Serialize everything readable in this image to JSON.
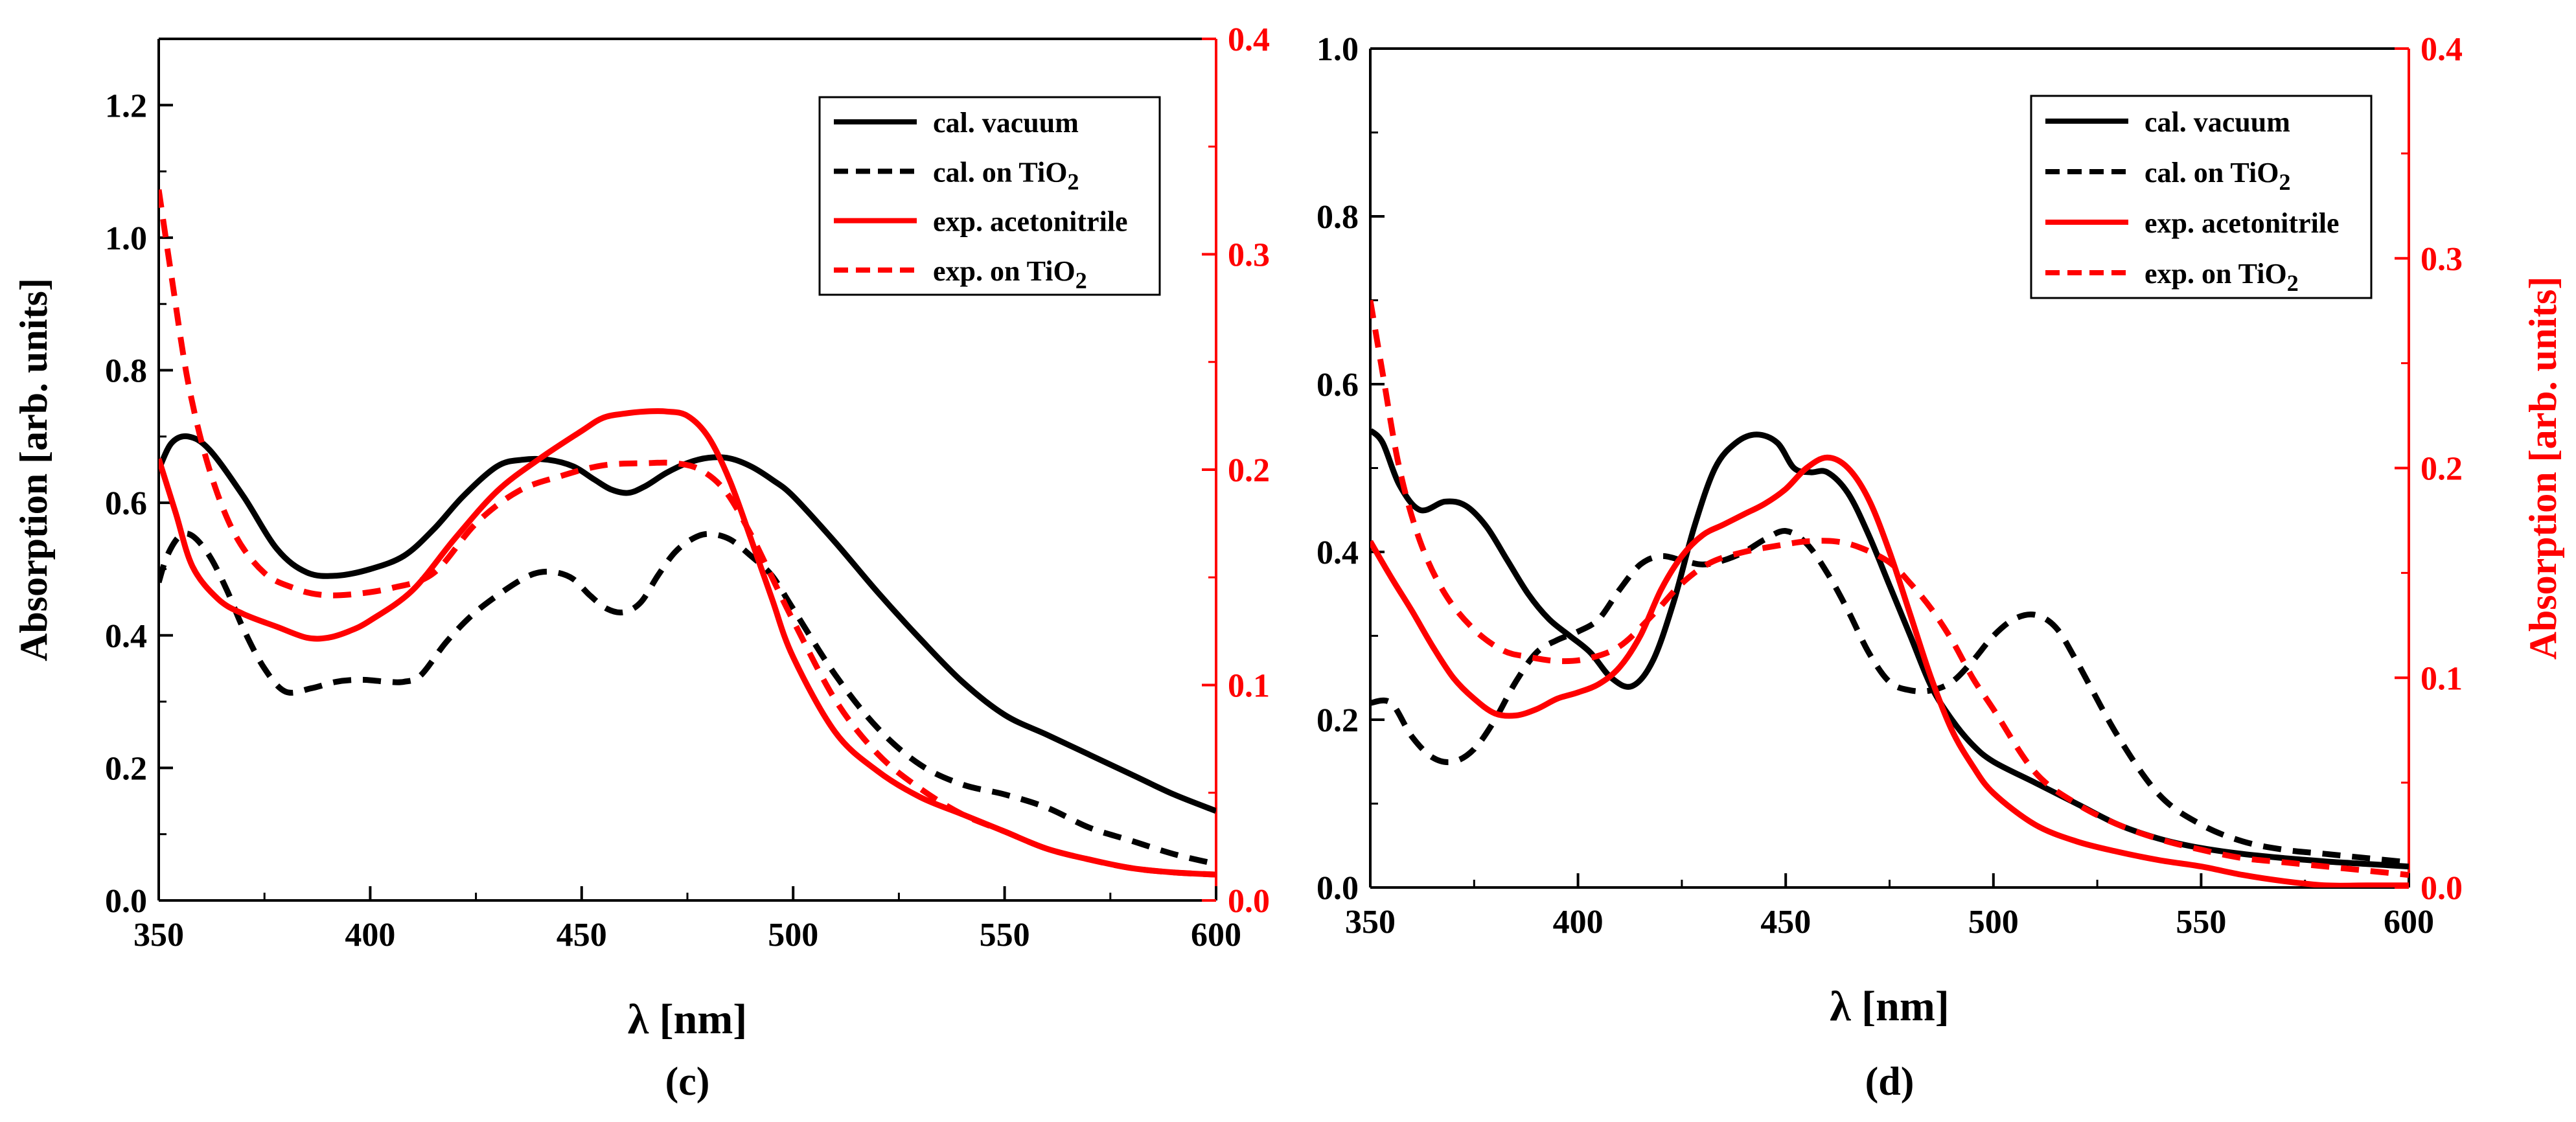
{
  "chart_data": [
    {
      "type": "line",
      "panel_label": "(c)",
      "xlabel": "λ [nm]",
      "ylabel": "Absorption [arb. units]",
      "ylabel_right": "",
      "xlim": [
        350,
        600
      ],
      "ylim": [
        0,
        1.3
      ],
      "ylim_right": [
        0,
        0.4
      ],
      "xticks": [
        350,
        400,
        450,
        500,
        550,
        600
      ],
      "yticks": [
        0.0,
        0.2,
        0.4,
        0.6,
        0.8,
        1.0,
        1.2
      ],
      "yticks_right": [
        0.0,
        0.1,
        0.2,
        0.3,
        0.4
      ],
      "ytick_labels": [
        "0.0",
        "0.2",
        "0.4",
        "0.6",
        "0.8",
        "1.0",
        "1.2"
      ],
      "ytick_right_labels": [
        "0.0",
        "0.1",
        "0.2",
        "0.3",
        "0.4"
      ],
      "legend": {
        "placement": "top-right"
      },
      "series": [
        {
          "name": "cal. vacuum",
          "legend_main": "cal. vacuum",
          "legend_sub": "",
          "color": "#000000",
          "dash": "solid",
          "axis": "left",
          "x": [
            350,
            353,
            357,
            362,
            370,
            378,
            385,
            392,
            400,
            408,
            415,
            422,
            430,
            436,
            442,
            448,
            453,
            457,
            461,
            465,
            470,
            475,
            480,
            485,
            490,
            495,
            500,
            510,
            520,
            530,
            540,
            550,
            560,
            570,
            580,
            590,
            600
          ],
          "y": [
            0.65,
            0.69,
            0.7,
            0.68,
            0.61,
            0.53,
            0.495,
            0.49,
            0.5,
            0.52,
            0.56,
            0.61,
            0.655,
            0.665,
            0.665,
            0.655,
            0.635,
            0.62,
            0.615,
            0.625,
            0.645,
            0.66,
            0.668,
            0.667,
            0.655,
            0.635,
            0.61,
            0.54,
            0.465,
            0.395,
            0.33,
            0.28,
            0.25,
            0.22,
            0.19,
            0.16,
            0.135
          ]
        },
        {
          "name": "cal. on TiO2",
          "legend_main": "cal. on TiO",
          "legend_sub": "2",
          "color": "#000000",
          "dash": "dashed",
          "axis": "left",
          "x": [
            350,
            352,
            355,
            358,
            362,
            366,
            370,
            375,
            380,
            386,
            392,
            398,
            404,
            408,
            412,
            418,
            424,
            430,
            436,
            440,
            444,
            448,
            452,
            456,
            460,
            464,
            468,
            472,
            476,
            480,
            485,
            490,
            495,
            500,
            510,
            520,
            530,
            540,
            550,
            560,
            570,
            580,
            590,
            600
          ],
          "y": [
            0.48,
            0.52,
            0.55,
            0.55,
            0.52,
            0.47,
            0.41,
            0.35,
            0.315,
            0.32,
            0.33,
            0.333,
            0.33,
            0.33,
            0.34,
            0.39,
            0.43,
            0.46,
            0.485,
            0.495,
            0.495,
            0.485,
            0.46,
            0.44,
            0.435,
            0.45,
            0.49,
            0.525,
            0.545,
            0.553,
            0.545,
            0.52,
            0.49,
            0.44,
            0.34,
            0.26,
            0.205,
            0.175,
            0.16,
            0.14,
            0.11,
            0.09,
            0.07,
            0.055
          ]
        },
        {
          "name": "exp. acetonitrile",
          "legend_main": "exp. acetonitrile",
          "legend_sub": "",
          "color": "#ff0000",
          "dash": "solid",
          "axis": "right",
          "x": [
            350,
            354,
            358,
            364,
            370,
            378,
            385,
            390,
            395,
            400,
            410,
            420,
            430,
            440,
            450,
            455,
            460,
            465,
            470,
            475,
            480,
            485,
            490,
            495,
            500,
            510,
            520,
            530,
            540,
            550,
            560,
            570,
            580,
            590,
            600
          ],
          "y": [
            0.205,
            0.18,
            0.155,
            0.14,
            0.133,
            0.127,
            0.122,
            0.122,
            0.125,
            0.13,
            0.144,
            0.168,
            0.19,
            0.205,
            0.218,
            0.224,
            0.226,
            0.227,
            0.227,
            0.225,
            0.215,
            0.195,
            0.168,
            0.14,
            0.113,
            0.078,
            0.06,
            0.048,
            0.04,
            0.032,
            0.024,
            0.019,
            0.015,
            0.013,
            0.012
          ]
        },
        {
          "name": "exp. on TiO2",
          "legend_main": "exp. on TiO",
          "legend_sub": "2",
          "color": "#ff0000",
          "dash": "dashed",
          "axis": "right",
          "x": [
            350,
            353,
            357,
            362,
            368,
            375,
            382,
            388,
            395,
            405,
            415,
            425,
            435,
            445,
            455,
            465,
            472,
            478,
            484,
            490,
            495,
            500,
            510,
            520,
            530,
            540,
            550,
            560,
            570,
            580,
            590,
            600
          ],
          "y": [
            0.33,
            0.29,
            0.24,
            0.2,
            0.17,
            0.152,
            0.145,
            0.142,
            0.142,
            0.145,
            0.152,
            0.175,
            0.19,
            0.197,
            0.202,
            0.203,
            0.203,
            0.2,
            0.19,
            0.17,
            0.15,
            0.13,
            0.093,
            0.068,
            0.052,
            0.04,
            0.032,
            0.024,
            0.019,
            0.015,
            0.013,
            0.012
          ]
        }
      ]
    },
    {
      "type": "line",
      "panel_label": "(d)",
      "xlabel": "λ [nm]",
      "ylabel": "",
      "ylabel_right": "Absorption [arb. units]",
      "xlim": [
        350,
        600
      ],
      "ylim": [
        0,
        1.0
      ],
      "ylim_right": [
        0,
        0.4
      ],
      "xticks": [
        350,
        400,
        450,
        500,
        550,
        600
      ],
      "yticks": [
        0.0,
        0.2,
        0.4,
        0.6,
        0.8,
        1.0
      ],
      "yticks_right": [
        0.0,
        0.1,
        0.2,
        0.3,
        0.4
      ],
      "ytick_labels": [
        "0.0",
        "0.2",
        "0.4",
        "0.6",
        "0.8",
        "1.0"
      ],
      "ytick_right_labels": [
        "0.0",
        "0.1",
        "0.2",
        "0.3",
        "0.4"
      ],
      "legend": {
        "placement": "top-right"
      },
      "series": [
        {
          "name": "cal. vacuum",
          "legend_main": "cal. vacuum",
          "legend_sub": "",
          "color": "#000000",
          "dash": "solid",
          "axis": "left",
          "x": [
            350,
            353,
            357,
            362,
            368,
            373,
            378,
            383,
            388,
            393,
            398,
            403,
            408,
            413,
            418,
            423,
            428,
            433,
            438,
            443,
            448,
            452,
            456,
            460,
            465,
            470,
            475,
            480,
            485,
            490,
            495,
            500,
            510,
            520,
            530,
            540,
            550,
            560,
            570,
            580,
            590,
            600
          ],
          "y": [
            0.545,
            0.53,
            0.48,
            0.45,
            0.46,
            0.455,
            0.43,
            0.39,
            0.35,
            0.32,
            0.3,
            0.28,
            0.25,
            0.24,
            0.27,
            0.34,
            0.43,
            0.5,
            0.53,
            0.54,
            0.53,
            0.5,
            0.495,
            0.495,
            0.47,
            0.42,
            0.36,
            0.3,
            0.24,
            0.2,
            0.17,
            0.15,
            0.125,
            0.1,
            0.075,
            0.058,
            0.047,
            0.04,
            0.035,
            0.031,
            0.028,
            0.025
          ]
        },
        {
          "name": "cal. on TiO2",
          "legend_main": "cal. on TiO",
          "legend_sub": "2",
          "color": "#000000",
          "dash": "dashed",
          "axis": "left",
          "x": [
            350,
            355,
            360,
            365,
            370,
            375,
            380,
            385,
            390,
            395,
            400,
            405,
            410,
            415,
            420,
            425,
            430,
            435,
            440,
            445,
            450,
            455,
            460,
            465,
            470,
            475,
            480,
            485,
            490,
            495,
            500,
            505,
            510,
            515,
            520,
            530,
            540,
            550,
            560,
            570,
            580,
            590,
            600
          ],
          "y": [
            0.22,
            0.22,
            0.18,
            0.155,
            0.15,
            0.165,
            0.2,
            0.245,
            0.28,
            0.295,
            0.305,
            0.32,
            0.355,
            0.385,
            0.395,
            0.39,
            0.385,
            0.39,
            0.4,
            0.415,
            0.425,
            0.41,
            0.375,
            0.33,
            0.28,
            0.245,
            0.235,
            0.235,
            0.245,
            0.27,
            0.3,
            0.32,
            0.325,
            0.31,
            0.27,
            0.18,
            0.11,
            0.075,
            0.055,
            0.045,
            0.04,
            0.035,
            0.03
          ]
        },
        {
          "name": "exp. acetonitrile",
          "legend_main": "exp. acetonitrile",
          "legend_sub": "",
          "color": "#ff0000",
          "dash": "solid",
          "axis": "right",
          "x": [
            350,
            355,
            360,
            365,
            370,
            375,
            380,
            385,
            390,
            395,
            400,
            405,
            410,
            415,
            420,
            425,
            430,
            435,
            440,
            445,
            450,
            455,
            460,
            465,
            470,
            475,
            480,
            485,
            490,
            495,
            500,
            510,
            520,
            530,
            540,
            550,
            560,
            570,
            580,
            590,
            600
          ],
          "y": [
            0.165,
            0.148,
            0.132,
            0.115,
            0.1,
            0.09,
            0.083,
            0.082,
            0.085,
            0.09,
            0.093,
            0.097,
            0.105,
            0.12,
            0.142,
            0.158,
            0.168,
            0.173,
            0.178,
            0.183,
            0.19,
            0.2,
            0.205,
            0.2,
            0.185,
            0.16,
            0.13,
            0.1,
            0.075,
            0.058,
            0.045,
            0.03,
            0.022,
            0.017,
            0.013,
            0.01,
            0.006,
            0.003,
            0.001,
            0.001,
            0.001
          ]
        },
        {
          "name": "exp. on TiO2",
          "legend_main": "exp. on TiO",
          "legend_sub": "2",
          "color": "#ff0000",
          "dash": "dashed",
          "axis": "right",
          "x": [
            350,
            353,
            357,
            362,
            368,
            375,
            382,
            388,
            395,
            402,
            410,
            418,
            425,
            432,
            440,
            448,
            455,
            462,
            468,
            475,
            480,
            485,
            490,
            495,
            500,
            510,
            520,
            530,
            540,
            550,
            560,
            570,
            580,
            590,
            600
          ],
          "y": [
            0.28,
            0.245,
            0.2,
            0.165,
            0.14,
            0.123,
            0.113,
            0.11,
            0.108,
            0.109,
            0.115,
            0.13,
            0.145,
            0.155,
            0.16,
            0.163,
            0.165,
            0.165,
            0.162,
            0.155,
            0.145,
            0.133,
            0.118,
            0.1,
            0.085,
            0.055,
            0.04,
            0.03,
            0.023,
            0.018,
            0.014,
            0.012,
            0.01,
            0.008,
            0.006
          ]
        }
      ]
    }
  ]
}
